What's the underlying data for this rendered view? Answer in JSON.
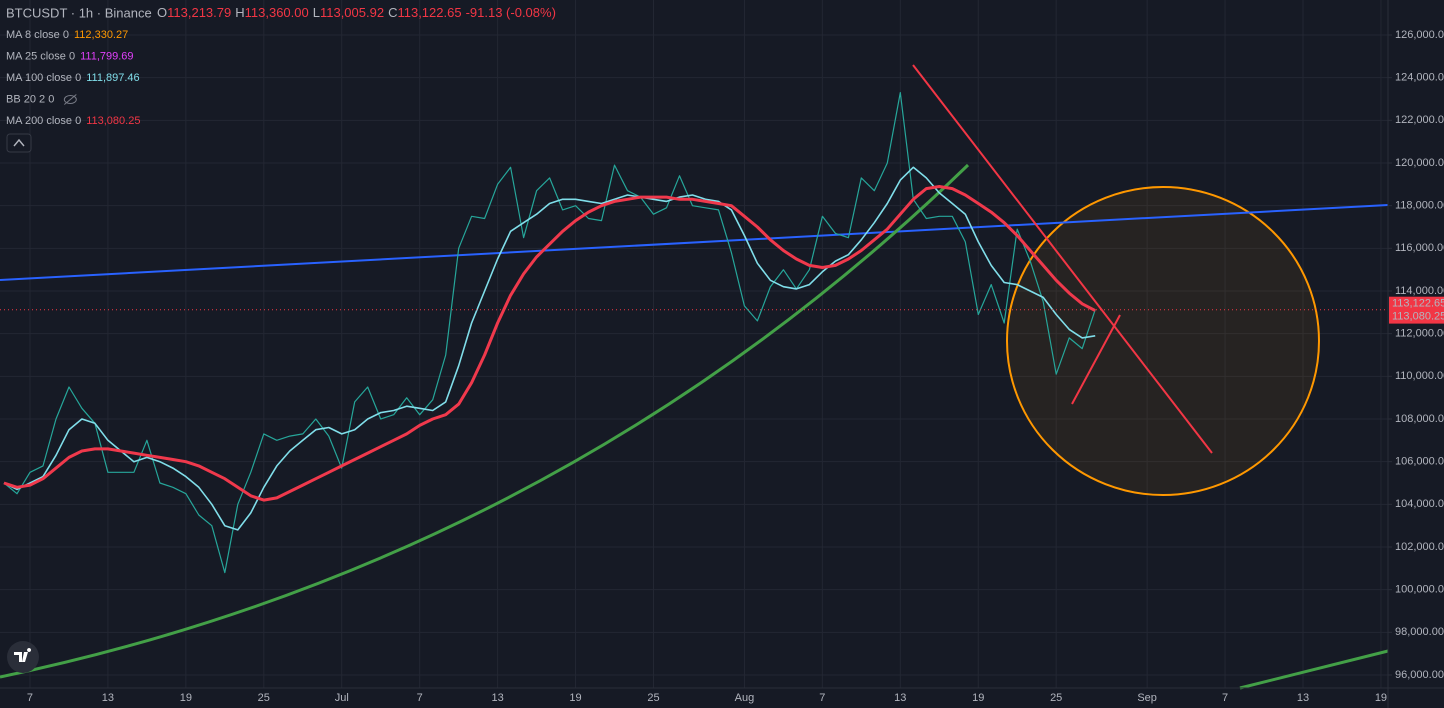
{
  "header": {
    "symbol": "BTCUSDT · 1h · Binance",
    "ohlc": [
      {
        "key": "O",
        "value": "113,213.79"
      },
      {
        "key": "H",
        "value": "113,360.00"
      },
      {
        "key": "L",
        "value": "113,005.92"
      },
      {
        "key": "C",
        "value": "113,122.65"
      }
    ],
    "change": "-91.13 (-0.08%)"
  },
  "chart_data": {
    "type": "line",
    "legend": [
      {
        "label": "MA 8 close 0",
        "value": "112,330.27",
        "color": "#ff9800"
      },
      {
        "label": "MA 25 close 0",
        "value": "111,799.69",
        "color": "#e040fb"
      },
      {
        "label": "MA 100 close 0",
        "value": "111,897.46",
        "color": "#80deea"
      },
      {
        "label": "BB 20 2 0",
        "color": "#787b86"
      },
      {
        "label": "MA 200 close 0",
        "value": "113,080.25",
        "color": "#f23645"
      }
    ],
    "categories": [
      null,
      null,
      "7",
      null,
      null,
      null,
      null,
      null,
      "13",
      null,
      null,
      null,
      null,
      null,
      "19",
      null,
      null,
      null,
      null,
      null,
      "25",
      null,
      null,
      null,
      null,
      null,
      "Jul",
      null,
      null,
      null,
      null,
      null,
      "7",
      null,
      null,
      null,
      null,
      null,
      "13",
      null,
      null,
      null,
      null,
      null,
      "19",
      null,
      null,
      null,
      null,
      null,
      "25",
      null,
      null,
      null,
      null,
      null,
      null,
      "Aug",
      null,
      null,
      null,
      null,
      null,
      "7",
      null,
      null,
      null,
      null,
      null,
      "13",
      null,
      null,
      null,
      null,
      null,
      "19",
      null,
      null,
      null,
      null,
      null,
      "25",
      null,
      null,
      null,
      null,
      null,
      null,
      "Sep",
      null,
      null,
      null,
      null,
      null,
      "7",
      null,
      null,
      null,
      null,
      null,
      "13",
      null,
      null,
      null,
      null,
      null,
      "19"
    ],
    "series": [
      {
        "color": "#26a69a",
        "width": 1.2,
        "values": [
          105000,
          104500,
          105500,
          105800,
          108000,
          109500,
          108500,
          107800,
          105500,
          105500,
          105500,
          107000,
          105000,
          104800,
          104500,
          103500,
          103000,
          100800,
          104000,
          105500,
          107300,
          107000,
          107200,
          107300,
          108000,
          107200,
          105700,
          108800,
          109500,
          108000,
          108200,
          109000,
          108200,
          108900,
          111000,
          116000,
          117500,
          117400,
          119000,
          119800,
          116500,
          118700,
          119300,
          117800,
          118000,
          117400,
          117300,
          119900,
          118700,
          118400,
          117600,
          117900,
          119400,
          118000,
          117900,
          117800,
          115800,
          113300,
          112600,
          114200,
          115000,
          114100,
          115000,
          117500,
          116700,
          116500,
          119300,
          118700,
          120000,
          123300,
          118300,
          117400,
          117500,
          117500,
          116300,
          112900,
          114300,
          112500,
          116900,
          115400,
          113500,
          110100,
          111800,
          111300,
          113122.65,
          null,
          null,
          null,
          null,
          null,
          null,
          null,
          null,
          null,
          null,
          null,
          null,
          null,
          null,
          null,
          null,
          null,
          null,
          null,
          null,
          null,
          null
        ]
      },
      {
        "color": "#80deea",
        "width": 1.6,
        "values": [
          105000,
          104700,
          105000,
          105300,
          106300,
          107500,
          108000,
          107800,
          107000,
          106500,
          106000,
          106200,
          106000,
          105700,
          105300,
          104800,
          104000,
          103000,
          102800,
          103600,
          104800,
          105800,
          106500,
          107000,
          107500,
          107600,
          107300,
          107500,
          108000,
          108300,
          108400,
          108600,
          108500,
          108400,
          108800,
          110500,
          112500,
          114000,
          115500,
          116800,
          117200,
          117600,
          118100,
          118300,
          118300,
          118200,
          118100,
          118300,
          118500,
          118400,
          118300,
          118200,
          118400,
          118500,
          118300,
          118200,
          117800,
          116600,
          115300,
          114500,
          114200,
          114100,
          114300,
          114900,
          115400,
          115700,
          116400,
          117200,
          118100,
          119200,
          119800,
          119300,
          118600,
          118100,
          117600,
          116300,
          115200,
          114400,
          114300,
          114000,
          113700,
          112900,
          112200,
          111800,
          111900,
          null,
          null,
          null,
          null,
          null,
          null,
          null,
          null,
          null,
          null,
          null,
          null,
          null,
          null,
          null,
          null,
          null,
          null,
          null,
          null,
          null,
          null
        ]
      },
      {
        "color": "#f0394c",
        "width": 3,
        "values": [
          105000,
          104800,
          104900,
          105200,
          105700,
          106200,
          106500,
          106600,
          106600,
          106500,
          106400,
          106300,
          106200,
          106100,
          106000,
          105800,
          105500,
          105200,
          104800,
          104400,
          104200,
          104300,
          104600,
          104900,
          105200,
          105500,
          105800,
          106100,
          106400,
          106700,
          107000,
          107300,
          107700,
          108000,
          108200,
          108700,
          109700,
          111000,
          112500,
          113800,
          114800,
          115600,
          116200,
          116800,
          117300,
          117700,
          118000,
          118200,
          118300,
          118400,
          118400,
          118400,
          118300,
          118300,
          118200,
          118100,
          118000,
          117500,
          117000,
          116400,
          115900,
          115500,
          115200,
          115100,
          115200,
          115500,
          115900,
          116400,
          116900,
          117600,
          118300,
          118800,
          118900,
          118800,
          118500,
          118100,
          117700,
          117200,
          116600,
          115900,
          115200,
          114500,
          113900,
          113400,
          113080.25,
          null,
          null,
          null,
          null,
          null,
          null,
          null,
          null,
          null,
          null,
          null,
          null,
          null,
          null,
          null,
          null,
          null,
          null,
          null,
          null,
          null,
          null
        ]
      }
    ],
    "ylim": [
      95390,
      127640
    ],
    "yticks": [
      {
        "value": 96000,
        "label": "96,000.00"
      },
      {
        "value": 98000,
        "label": "98,000.00"
      },
      {
        "value": 100000,
        "label": "100,000.00"
      },
      {
        "value": 102000,
        "label": "102,000.00"
      },
      {
        "value": 104000,
        "label": "104,000.00"
      },
      {
        "value": 106000,
        "label": "106,000.00"
      },
      {
        "value": 108000,
        "label": "108,000.00"
      },
      {
        "value": 110000,
        "label": "110,000.00"
      },
      {
        "value": 112000,
        "label": "112,000.00"
      },
      {
        "value": 114000,
        "label": "114,000.00"
      },
      {
        "value": 116000,
        "label": "116,000.00"
      },
      {
        "value": 118000,
        "label": "118,000.00"
      },
      {
        "value": 120000,
        "label": "120,000.00"
      },
      {
        "value": 122000,
        "label": "122,000.00"
      },
      {
        "value": 124000,
        "label": "124,000.00"
      },
      {
        "value": 126000,
        "label": "126,000.00"
      }
    ],
    "price_labels": [
      {
        "value": 113122.65,
        "label": "113,122.65",
        "color": "#f23645"
      },
      {
        "value": 113080.25,
        "label": "113,080.25",
        "color": "#f23645"
      }
    ],
    "grid": true
  }
}
